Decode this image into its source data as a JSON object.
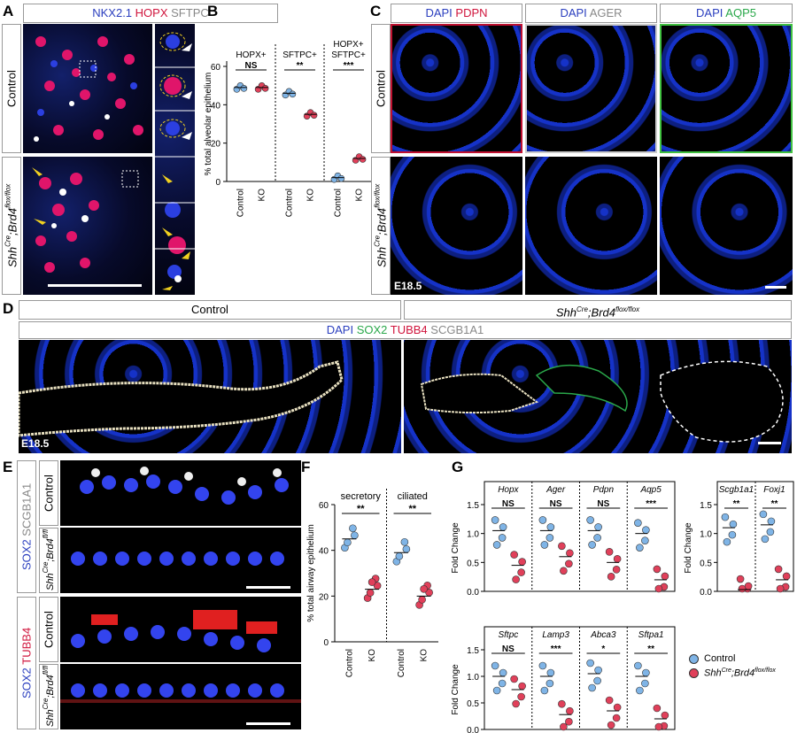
{
  "panels": {
    "A": "A",
    "B": "B",
    "C": "C",
    "D": "D",
    "E": "E",
    "F": "F",
    "G": "G"
  },
  "panelA": {
    "stains": [
      {
        "text": "NKX2.1",
        "color": "#2b3fbf"
      },
      {
        "text": "HOPX",
        "color": "#d0143c"
      },
      {
        "text": "SFTPC",
        "color": "#888888"
      }
    ],
    "row_control": "Control",
    "row_ko_main": "Shh",
    "row_ko_sup1": "Cre",
    "row_ko_mid": ";Brd4",
    "row_ko_sup2": "flox/flox"
  },
  "panelB": {
    "ylabel": "% total alveolar epithelium",
    "groups": [
      "HOPX+",
      "SFTPC+",
      "HOPX+\nSFTPC+"
    ],
    "group1_l1": "HOPX+",
    "group3_l1": "HOPX+",
    "group3_l2": "SFTPC+",
    "group2_l1": "SFTPC+",
    "sig": [
      "NS",
      "**",
      "***"
    ],
    "xticks": [
      "Control",
      "KO",
      "Control",
      "KO",
      "Control",
      "KO"
    ],
    "yticks": [
      "0",
      "20",
      "40",
      "60"
    ]
  },
  "panelC": {
    "cols": [
      {
        "a": "DAPI",
        "b": "PDPN",
        "bcolor": "#d0143c"
      },
      {
        "a": "DAPI",
        "b": "AGER",
        "bcolor": "#888888"
      },
      {
        "a": "DAPI",
        "b": "AQP5",
        "bcolor": "#2aa84a"
      }
    ],
    "row_control": "Control",
    "stage": "E18.5"
  },
  "panelD": {
    "col_control": "Control",
    "stains": [
      {
        "text": "DAPI",
        "color": "#2b3fbf"
      },
      {
        "text": "SOX2",
        "color": "#2aa84a"
      },
      {
        "text": "TUBB4",
        "color": "#d0143c"
      },
      {
        "text": "SCGB1A1",
        "color": "#888888"
      }
    ],
    "stage": "E18.5"
  },
  "panelE": {
    "top_stain_a": "SOX2",
    "top_stain_b": "SCGB1A1",
    "bot_stain_a": "SOX2",
    "bot_stain_b": "TUBB4",
    "row_control": "Control",
    "row_ko_main": "Shh",
    "row_ko_sup1": "Cre",
    "row_ko_mid": ";Brd4",
    "row_ko_sup2": "fl/fl"
  },
  "panelF": {
    "ylabel": "% total airway epithelium",
    "groups": [
      "secretory",
      "ciliated"
    ],
    "sig": [
      "**",
      "**"
    ],
    "xticks": [
      "Control",
      "KO",
      "Control",
      "KO"
    ],
    "yticks": [
      "0",
      "20",
      "40",
      "60"
    ]
  },
  "panelG": {
    "ylabel": "Fold Change",
    "top_genes": [
      "Hopx",
      "Ager",
      "Pdpn",
      "Aqp5"
    ],
    "top_sig": [
      "NS",
      "NS",
      "NS",
      "***"
    ],
    "bot_genes": [
      "Sftpc",
      "Lamp3",
      "Abca3",
      "Sftpa1"
    ],
    "bot_sig": [
      "NS",
      "***",
      "*",
      "**"
    ],
    "side_genes": [
      "Scgb1a1",
      "Foxj1"
    ],
    "side_sig": [
      "**",
      "**"
    ],
    "yticks": [
      "0.0",
      "0.5",
      "1.0",
      "1.5"
    ],
    "legend_control": "Control",
    "legend_ko_main": "Shh",
    "legend_ko_sup1": "Cre",
    "legend_ko_mid": ";Brd4",
    "legend_ko_sup2": "flox/flox"
  },
  "chart_data": [
    {
      "type": "scatter",
      "panel": "B",
      "ylabel": "% total alveolar epithelium",
      "ylim": [
        0,
        60
      ],
      "categories": [
        "Control",
        "KO",
        "Control",
        "KO",
        "Control",
        "KO"
      ],
      "series": [
        {
          "values": [
            49,
            49,
            46,
            35,
            2,
            12
          ]
        }
      ]
    },
    {
      "type": "scatter",
      "panel": "F",
      "ylabel": "% total airway epithelium",
      "ylim": [
        0,
        60
      ],
      "categories": [
        "Control",
        "KO",
        "Control",
        "KO"
      ],
      "series": [
        {
          "values": [
            45,
            23,
            39,
            20
          ]
        }
      ]
    },
    {
      "type": "scatter",
      "panel": "G-top",
      "ylabel": "Fold Change",
      "ylim": [
        0,
        1.5
      ],
      "categories": [
        "Hopx",
        "Ager",
        "Pdpn",
        "Aqp5"
      ],
      "series": [
        {
          "name": "Control",
          "values": [
            1.05,
            1.05,
            1.05,
            1.0
          ]
        },
        {
          "name": "Shh Cre;Brd4 flox/flox",
          "values": [
            0.45,
            0.6,
            0.5,
            0.2
          ]
        }
      ]
    },
    {
      "type": "scatter",
      "panel": "G-bottom",
      "ylabel": "Fold Change",
      "ylim": [
        0,
        1.5
      ],
      "categories": [
        "Sftpc",
        "Lamp3",
        "Abca3",
        "Sftpa1"
      ],
      "series": [
        {
          "name": "Control",
          "values": [
            1.0,
            1.0,
            1.05,
            1.0
          ]
        },
        {
          "name": "Shh Cre;Brd4 flox/flox",
          "values": [
            0.75,
            0.28,
            0.35,
            0.2
          ]
        }
      ]
    },
    {
      "type": "scatter",
      "panel": "G-side",
      "ylabel": "Fold Change",
      "ylim": [
        0,
        1.5
      ],
      "categories": [
        "Scgb1a1",
        "Foxj1"
      ],
      "series": [
        {
          "name": "Control",
          "values": [
            1.1,
            1.15
          ]
        },
        {
          "name": "Shh Cre;Brd4 flox/flox",
          "values": [
            0.03,
            0.2
          ]
        }
      ]
    }
  ]
}
